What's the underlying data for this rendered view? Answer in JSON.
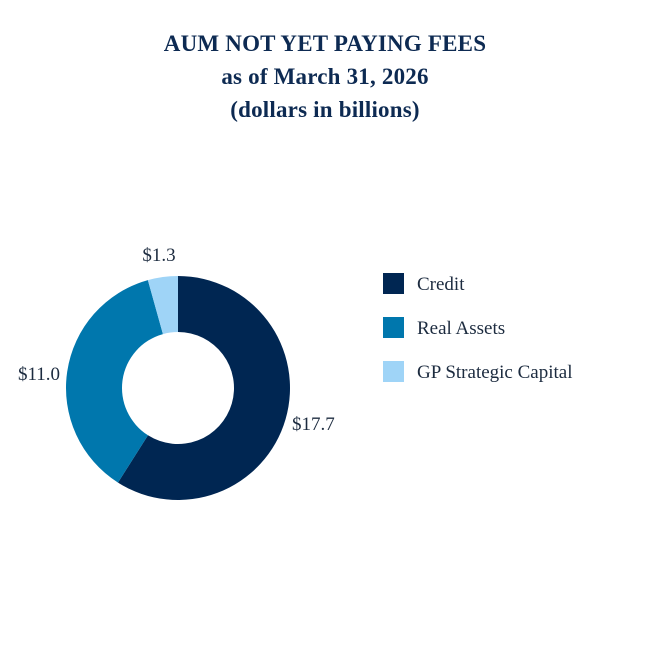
{
  "chart_data": {
    "type": "pie",
    "title": "AUM NOT YET PAYING FEES",
    "subtitle": "as of March 31, 2026",
    "units_note": "(dollars in billions)",
    "categories": [
      "Credit",
      "Real Assets",
      "GP Strategic Capital"
    ],
    "values": [
      17.7,
      11.0,
      1.3
    ],
    "data_labels": [
      "$17.7",
      "$11.0",
      "$1.3"
    ],
    "colors": [
      "#002652",
      "#0077ad",
      "#9fd4f7"
    ],
    "donut": true,
    "legend_position": "right"
  }
}
